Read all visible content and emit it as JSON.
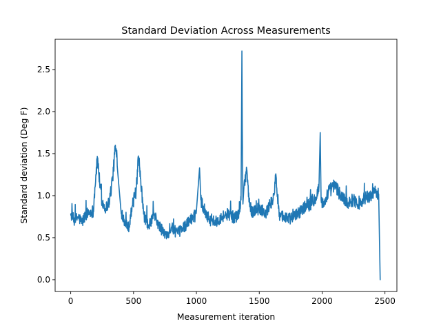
{
  "chart_data": {
    "type": "line",
    "title": "Standard Deviation Across Measurements",
    "xlabel": "Measurement iteration",
    "ylabel": "Standard deviation (Deg F)",
    "xlim": [
      -124,
      2595
    ],
    "ylim": [
      -0.14,
      2.86
    ],
    "xticks": [
      {
        "value": 0,
        "label": "0"
      },
      {
        "value": 500,
        "label": "500"
      },
      {
        "value": 1000,
        "label": "1000"
      },
      {
        "value": 1500,
        "label": "1500"
      },
      {
        "value": 2000,
        "label": "2000"
      },
      {
        "value": 2500,
        "label": "2500"
      }
    ],
    "yticks": [
      {
        "value": 0.0,
        "label": "0.0"
      },
      {
        "value": 0.5,
        "label": "0.5"
      },
      {
        "value": 1.0,
        "label": "1.0"
      },
      {
        "value": 1.5,
        "label": "1.5"
      },
      {
        "value": 2.0,
        "label": "2.0"
      },
      {
        "value": 2.5,
        "label": "2.5"
      }
    ],
    "grid": false,
    "color": "#1f77b4",
    "series": [
      {
        "x": [
          0,
          30,
          60,
          90,
          120,
          150,
          180,
          200,
          215,
          230,
          250,
          280,
          310,
          340,
          355,
          370,
          400,
          430,
          460,
          490,
          520,
          540,
          555,
          580,
          620,
          660,
          700,
          730,
          760,
          800,
          850,
          900,
          950,
          1000,
          1025,
          1035,
          1060,
          1100,
          1150,
          1200,
          1250,
          1300,
          1340,
          1355,
          1362,
          1365,
          1370,
          1380,
          1400,
          1420,
          1440,
          1470,
          1500,
          1550,
          1580,
          1610,
          1630,
          1645,
          1660,
          1700,
          1750,
          1800,
          1850,
          1900,
          1950,
          1975,
          1985,
          1992,
          2010,
          2050,
          2100,
          2150,
          2200,
          2250,
          2300,
          2350,
          2400,
          2430,
          2450,
          2455,
          2462
        ],
        "y": [
          0.78,
          0.7,
          0.75,
          0.68,
          0.78,
          0.8,
          0.82,
          1.25,
          1.45,
          1.15,
          0.92,
          0.85,
          0.95,
          1.3,
          1.6,
          1.35,
          0.82,
          0.7,
          0.62,
          0.88,
          1.05,
          1.45,
          1.2,
          0.78,
          0.62,
          0.78,
          0.65,
          0.58,
          0.52,
          0.62,
          0.55,
          0.63,
          0.7,
          0.82,
          1.33,
          0.95,
          0.85,
          0.72,
          0.68,
          0.75,
          0.78,
          0.74,
          0.78,
          0.95,
          2.72,
          1.8,
          0.9,
          1.15,
          1.32,
          0.92,
          0.8,
          0.83,
          0.85,
          0.78,
          0.88,
          0.95,
          1.2,
          1.0,
          0.78,
          0.75,
          0.72,
          0.78,
          0.85,
          0.9,
          0.98,
          1.1,
          1.75,
          0.95,
          0.88,
          1.05,
          1.12,
          1.0,
          0.92,
          0.95,
          0.9,
          0.98,
          1.0,
          1.05,
          1.02,
          0.6,
          0.0
        ]
      }
    ]
  }
}
